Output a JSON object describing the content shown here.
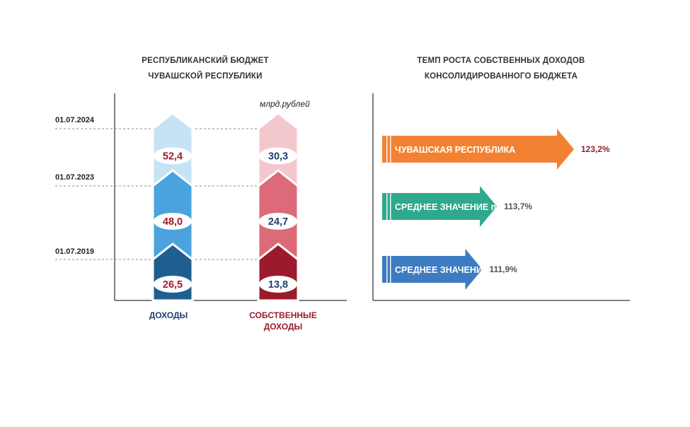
{
  "left_chart": {
    "title_line1": "РЕСПУБЛИКАНСКИЙ БЮДЖЕТ",
    "title_line2": "ЧУВАШСКОЙ РЕСПУБЛИКИ",
    "unit": "млрд.рублей",
    "dates": [
      "01.07.2024",
      "01.07.2023",
      "01.07.2019"
    ],
    "categories": [
      {
        "line1": "ДОХОДЫ",
        "line2": ""
      },
      {
        "line1": "СОБСТВЕННЫЕ",
        "line2": "ДОХОДЫ"
      }
    ]
  },
  "right_chart": {
    "title_line1": "ТЕМП РОСТА СОБСТВЕННЫХ ДОХОДОВ",
    "title_line2": "КОНСОЛИДИРОВАННОГО БЮДЖЕТА"
  },
  "colors": {
    "dohody_2019": "#1f5f8f",
    "dohody_2023": "#4aa3dc",
    "dohody_2024": "#c6e3f4",
    "sobst_2019": "#9c1b2b",
    "sobst_2023": "#dc6a79",
    "sobst_2024": "#f3c8cd",
    "dark_red_text": "#9c1b2b",
    "dark_blue_text": "#1f3f6f",
    "chuvash_arrow": "#f28232",
    "pfo_arrow": "#2ea98c",
    "rf_arrow": "#3d7cc0"
  },
  "chart_data": [
    {
      "type": "bar",
      "title": "РЕСПУБЛИКАНСКИЙ БЮДЖЕТ ЧУВАШСКОЙ РЕСПУБЛИКИ",
      "ylabel": "млрд.рублей",
      "categories": [
        "ДОХОДЫ",
        "СОБСТВЕННЫЕ ДОХОДЫ"
      ],
      "ylim": [
        0,
        55
      ],
      "series": [
        {
          "name": "01.07.2019",
          "values": [
            26.5,
            13.8
          ],
          "labels": [
            "26,5",
            "13,8"
          ]
        },
        {
          "name": "01.07.2023",
          "values": [
            48.0,
            24.7
          ],
          "labels": [
            "48,0",
            "24,7"
          ]
        },
        {
          "name": "01.07.2024",
          "values": [
            52.4,
            30.3
          ],
          "labels": [
            "52,4",
            "30,3"
          ]
        }
      ]
    },
    {
      "type": "bar",
      "orientation": "horizontal",
      "title": "ТЕМП РОСТА СОБСТВЕННЫХ ДОХОДОВ КОНСОЛИДИРОВАННОГО БЮДЖЕТА",
      "categories": [
        "ЧУВАШСКАЯ РЕСПУБЛИКА",
        "СРЕДНЕЕ ЗНАЧЕНИЕ по ПФО",
        "СРЕДНЕЕ ЗНАЧЕНИЕ по РФ"
      ],
      "values": [
        123.2,
        113.7,
        111.9
      ],
      "labels": [
        "123,2%",
        "113,7%",
        "111,9%"
      ],
      "xlim": [
        100,
        125
      ]
    }
  ]
}
